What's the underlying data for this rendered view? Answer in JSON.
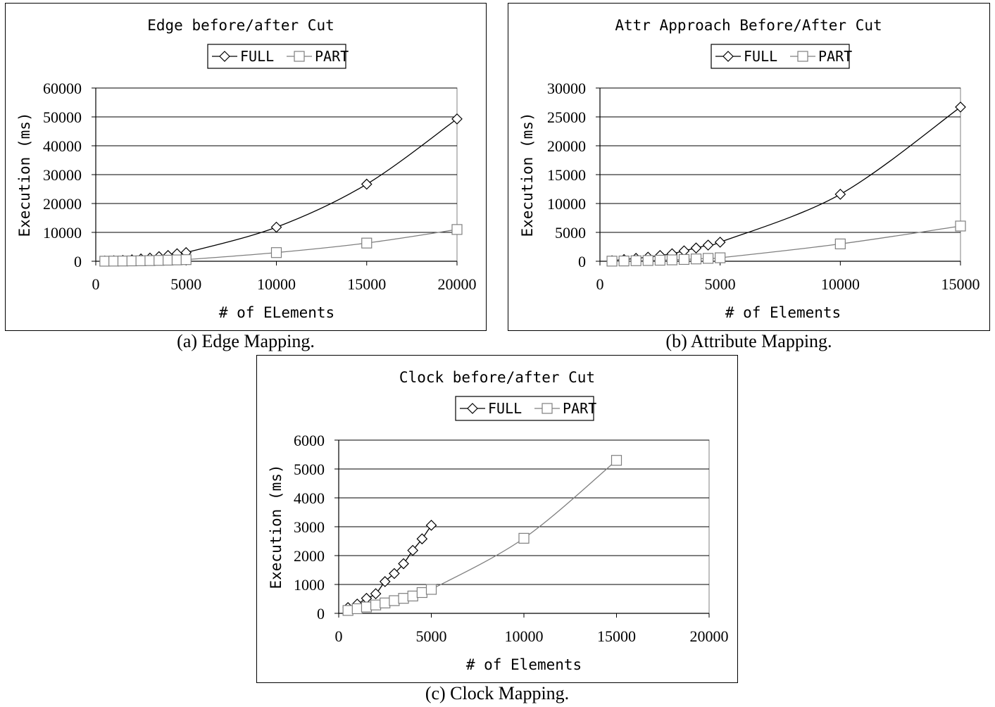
{
  "charts": [
    {
      "caption": "(a) Edge Mapping.",
      "chart_data": {
        "type": "line",
        "title": "Edge before/after Cut",
        "xlabel": "# of ELements",
        "ylabel": "Execution (ms)",
        "xlim": [
          0,
          20000
        ],
        "ylim": [
          0,
          60000
        ],
        "xticks": [
          0,
          5000,
          10000,
          15000,
          20000
        ],
        "yticks": [
          0,
          10000,
          20000,
          30000,
          40000,
          50000,
          60000
        ],
        "grid": "horizontal",
        "legend_position": "top",
        "series": [
          {
            "name": "FULL",
            "marker": "diamond",
            "x": [
              500,
              1000,
              1500,
              2000,
              2500,
              3000,
              3500,
              4000,
              4500,
              5000,
              10000,
              15000,
              20000
            ],
            "y": [
              100,
              200,
              300,
              500,
              800,
              1100,
              1600,
              2000,
              2600,
              3000,
              11800,
              26700,
              49300
            ]
          },
          {
            "name": "PART",
            "marker": "square",
            "x": [
              500,
              1000,
              1500,
              2000,
              2500,
              3000,
              3500,
              4000,
              4500,
              5000,
              10000,
              15000,
              20000
            ],
            "y": [
              20,
              50,
              80,
              120,
              170,
              220,
              300,
              380,
              470,
              560,
              3000,
              6300,
              11000
            ]
          }
        ]
      }
    },
    {
      "caption": "(b) Attribute Mapping.",
      "chart_data": {
        "type": "line",
        "title": "Attr Approach Before/After Cut",
        "xlabel": "# of Elements",
        "ylabel": "Execution (ms)",
        "xlim": [
          0,
          15000
        ],
        "ylim": [
          0,
          30000
        ],
        "xticks": [
          0,
          5000,
          10000,
          15000
        ],
        "yticks": [
          0,
          5000,
          10000,
          15000,
          20000,
          25000,
          30000
        ],
        "grid": "horizontal",
        "legend_position": "top",
        "series": [
          {
            "name": "FULL",
            "marker": "diamond",
            "x": [
              500,
              1000,
              1500,
              2000,
              2500,
              3000,
              3500,
              4000,
              4500,
              5000,
              10000,
              15000
            ],
            "y": [
              100,
              300,
              500,
              700,
              1000,
              1300,
              1800,
              2300,
              2800,
              3300,
              11600,
              26700
            ]
          },
          {
            "name": "PART",
            "marker": "square",
            "x": [
              500,
              1000,
              1500,
              2000,
              2500,
              3000,
              3500,
              4000,
              4500,
              5000,
              10000,
              15000
            ],
            "y": [
              20,
              50,
              90,
              130,
              180,
              240,
              310,
              400,
              500,
              600,
              3000,
              6100
            ]
          }
        ]
      }
    },
    {
      "caption": "(c) Clock Mapping.",
      "chart_data": {
        "type": "line",
        "title": "Clock before/after Cut",
        "xlabel": "# of Elements",
        "ylabel": "Execution (ms)",
        "xlim": [
          0,
          20000
        ],
        "ylim": [
          0,
          6000
        ],
        "xticks": [
          0,
          5000,
          10000,
          15000,
          20000
        ],
        "yticks": [
          0,
          1000,
          2000,
          3000,
          4000,
          5000,
          6000
        ],
        "grid": "horizontal",
        "legend_position": "top",
        "series": [
          {
            "name": "FULL",
            "marker": "diamond",
            "x": [
              500,
              1000,
              1500,
              2000,
              2500,
              3000,
              3500,
              4000,
              4500,
              5000
            ],
            "y": [
              200,
              320,
              520,
              680,
              1100,
              1380,
              1720,
              2180,
              2580,
              3050
            ]
          },
          {
            "name": "PART",
            "marker": "square",
            "x": [
              500,
              1000,
              1500,
              2000,
              2500,
              3000,
              3500,
              4000,
              4500,
              5000,
              10000,
              15000
            ],
            "y": [
              100,
              160,
              220,
              290,
              360,
              440,
              520,
              600,
              720,
              830,
              2600,
              5300
            ]
          }
        ]
      }
    }
  ],
  "colors": {
    "full": "#000000",
    "part": "#7f7f7f",
    "grid": "#000000"
  }
}
